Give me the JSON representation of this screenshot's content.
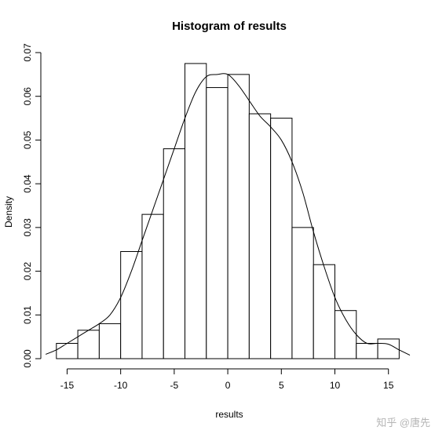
{
  "chart_data": {
    "type": "bar",
    "title": "Histogram of results",
    "xlabel": "results",
    "ylabel": "Density",
    "xlim": [
      -16.5,
      17
    ],
    "ylim": [
      0,
      0.07
    ],
    "x_ticks": [
      -15,
      -10,
      -5,
      0,
      5,
      10,
      15
    ],
    "x_tick_labels": [
      "-15",
      "-10",
      "-5",
      "0",
      "5",
      "10",
      "15"
    ],
    "y_ticks": [
      0,
      0.01,
      0.02,
      0.03,
      0.04,
      0.05,
      0.06,
      0.07
    ],
    "y_tick_labels": [
      "0.00",
      "0.01",
      "0.02",
      "0.03",
      "0.04",
      "0.05",
      "0.06",
      "0.07"
    ],
    "bins": [
      {
        "x0": -16,
        "x1": -14,
        "density": 0.0035
      },
      {
        "x0": -14,
        "x1": -12,
        "density": 0.0065
      },
      {
        "x0": -12,
        "x1": -10,
        "density": 0.008
      },
      {
        "x0": -10,
        "x1": -8,
        "density": 0.0245
      },
      {
        "x0": -8,
        "x1": -6,
        "density": 0.033
      },
      {
        "x0": -6,
        "x1": -4,
        "density": 0.048
      },
      {
        "x0": -4,
        "x1": -2,
        "density": 0.0675
      },
      {
        "x0": -2,
        "x1": 0,
        "density": 0.062
      },
      {
        "x0": 0,
        "x1": 2,
        "density": 0.065
      },
      {
        "x0": 2,
        "x1": 4,
        "density": 0.056
      },
      {
        "x0": 4,
        "x1": 6,
        "density": 0.055
      },
      {
        "x0": 6,
        "x1": 8,
        "density": 0.03
      },
      {
        "x0": 8,
        "x1": 10,
        "density": 0.0215
      },
      {
        "x0": 10,
        "x1": 12,
        "density": 0.011
      },
      {
        "x0": 12,
        "x1": 14,
        "density": 0.0035
      },
      {
        "x0": 14,
        "x1": 16,
        "density": 0.0045
      }
    ],
    "density_curve": {
      "x": [
        -17,
        -16,
        -15,
        -14,
        -13,
        -12,
        -11,
        -10,
        -9,
        -8,
        -7,
        -6,
        -5,
        -4,
        -3,
        -2,
        -1,
        0,
        1,
        2,
        3,
        4,
        5,
        6,
        7,
        8,
        9,
        10,
        11,
        12,
        13,
        14,
        15,
        16,
        17
      ],
      "y": [
        0.001,
        0.002,
        0.0035,
        0.005,
        0.0065,
        0.008,
        0.01,
        0.014,
        0.02,
        0.027,
        0.034,
        0.041,
        0.048,
        0.055,
        0.061,
        0.0645,
        0.065,
        0.065,
        0.0625,
        0.059,
        0.0555,
        0.053,
        0.05,
        0.045,
        0.038,
        0.029,
        0.021,
        0.014,
        0.009,
        0.0055,
        0.0035,
        0.0035,
        0.0033,
        0.002,
        0.0008
      ]
    },
    "grid": false,
    "legend": "none"
  },
  "colors": {
    "bar_fill": "#ffffff",
    "bar_stroke": "#000000",
    "line": "#000000",
    "background": "#ffffff"
  },
  "watermark": "知乎 @唐先"
}
